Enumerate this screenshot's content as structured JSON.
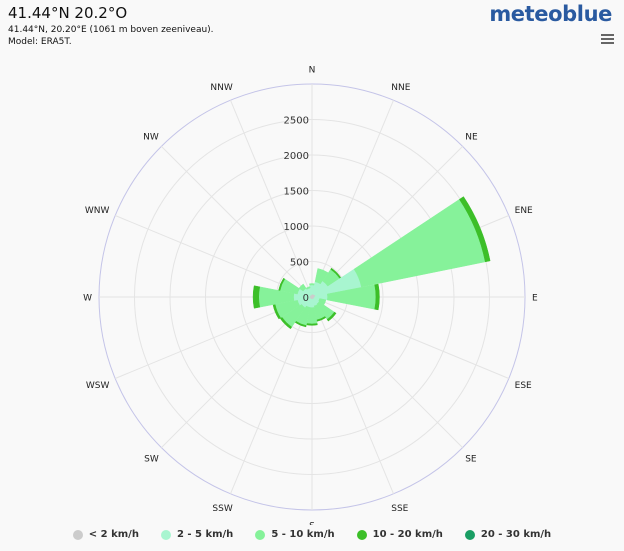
{
  "header": {
    "title": "41.44°N 20.2°O",
    "subtitle_line1": "41.44°N, 20.20°E (1061 m boven zeeniveau).",
    "subtitle_line2": "Model: ERA5T.",
    "logo": "meteoblue"
  },
  "chart_data": {
    "type": "windrose",
    "directions": [
      "N",
      "NNE",
      "NE",
      "ENE",
      "E",
      "ESE",
      "SE",
      "SSE",
      "S",
      "SSW",
      "SW",
      "WSW",
      "W",
      "WNW",
      "NW",
      "NNW"
    ],
    "radial_ticks": [
      0,
      500,
      1000,
      1500,
      2000,
      2500
    ],
    "radial_max": 3000,
    "series": [
      {
        "name": "< 2 km/h",
        "color": "#cccccc",
        "values": [
          40,
          40,
          40,
          50,
          40,
          30,
          30,
          30,
          30,
          30,
          30,
          30,
          40,
          30,
          30,
          30
        ]
      },
      {
        "name": "2 - 5 km/h",
        "color": "#a8f5d0",
        "values": [
          130,
          180,
          230,
          660,
          180,
          80,
          90,
          100,
          120,
          120,
          150,
          180,
          220,
          180,
          120,
          100
        ]
      },
      {
        "name": "5 - 10 km/h",
        "color": "#86f29a",
        "values": [
          20,
          190,
          200,
          1780,
          680,
          90,
          260,
          200,
          230,
          260,
          330,
          320,
          490,
          250,
          70,
          20
        ]
      },
      {
        "name": "10 - 20 km/h",
        "color": "#3cbf28",
        "values": [
          0,
          0,
          20,
          70,
          50,
          0,
          30,
          20,
          20,
          20,
          30,
          30,
          80,
          20,
          0,
          0
        ]
      },
      {
        "name": "20 - 30 km/h",
        "color": "#1a9e64",
        "values": [
          0,
          0,
          0,
          0,
          0,
          0,
          0,
          0,
          0,
          0,
          0,
          0,
          0,
          0,
          0,
          0
        ]
      }
    ]
  }
}
